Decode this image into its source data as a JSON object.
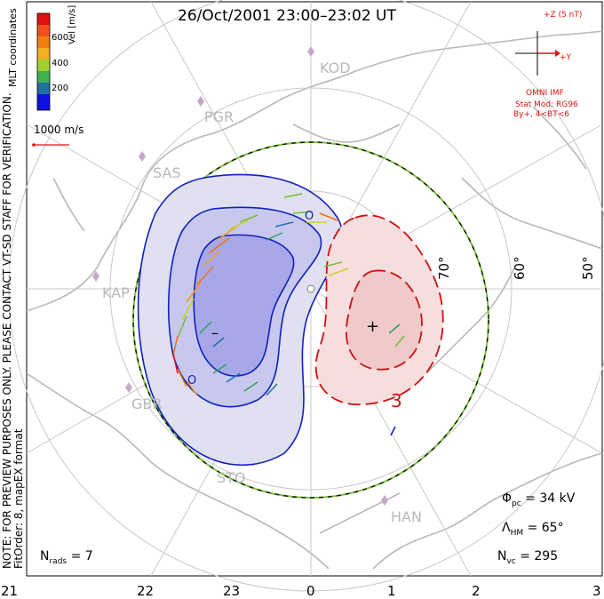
{
  "title": "26/Oct/2001  23:00–23:02  UT",
  "side_note": {
    "line1": "NOTE: FOR PREVIEW PURPOSES ONLY. PLEASE CONTACT VT-SD STAFF FOR VERIFICATION.",
    "line2": "FitOrder: 8, mapEX format"
  },
  "colorbar": {
    "label": "Vel [m/s]",
    "coord_label": "MLT coordinates",
    "ticks": [
      "600",
      "400",
      "200"
    ],
    "colors": [
      "#e01010",
      "#f07010",
      "#f0a020",
      "#d0d020",
      "#70c030",
      "#30a060",
      "#2070b0",
      "#1010d0"
    ]
  },
  "scale_vector": {
    "label": "1000 m/s"
  },
  "imf": {
    "z_label": "+Z (5 nT)",
    "y_label": "+Y",
    "source": "OMNI IMF",
    "model": "Stat Mod: RG96",
    "condition": "By+, 4<BT<6"
  },
  "latitude_labels": [
    "70°",
    "60°",
    "50°"
  ],
  "stations": [
    "KOD",
    "PGR",
    "SAS",
    "KAP",
    "GBR",
    "STO",
    "HAN"
  ],
  "mlt_labels": [
    "21",
    "22",
    "23",
    "0",
    "1",
    "2",
    "3"
  ],
  "contour_labels": {
    "min_sign": "–",
    "max_sign": "+",
    "neg_value": "3",
    "pos_marker": "O"
  },
  "stats": {
    "phi_pc": "Φ",
    "phi_pc_sub": "pc",
    "phi_pc_value": "= 34 kV",
    "lambda_hm": "Λ",
    "lambda_hm_sub": "HM",
    "lambda_hm_value": "= 65°",
    "n_vc": "N",
    "n_vc_sub": "vc",
    "n_vc_value": "= 295",
    "n_rads": "N",
    "n_rads_sub": "rads",
    "n_rads_value": "= 7"
  }
}
